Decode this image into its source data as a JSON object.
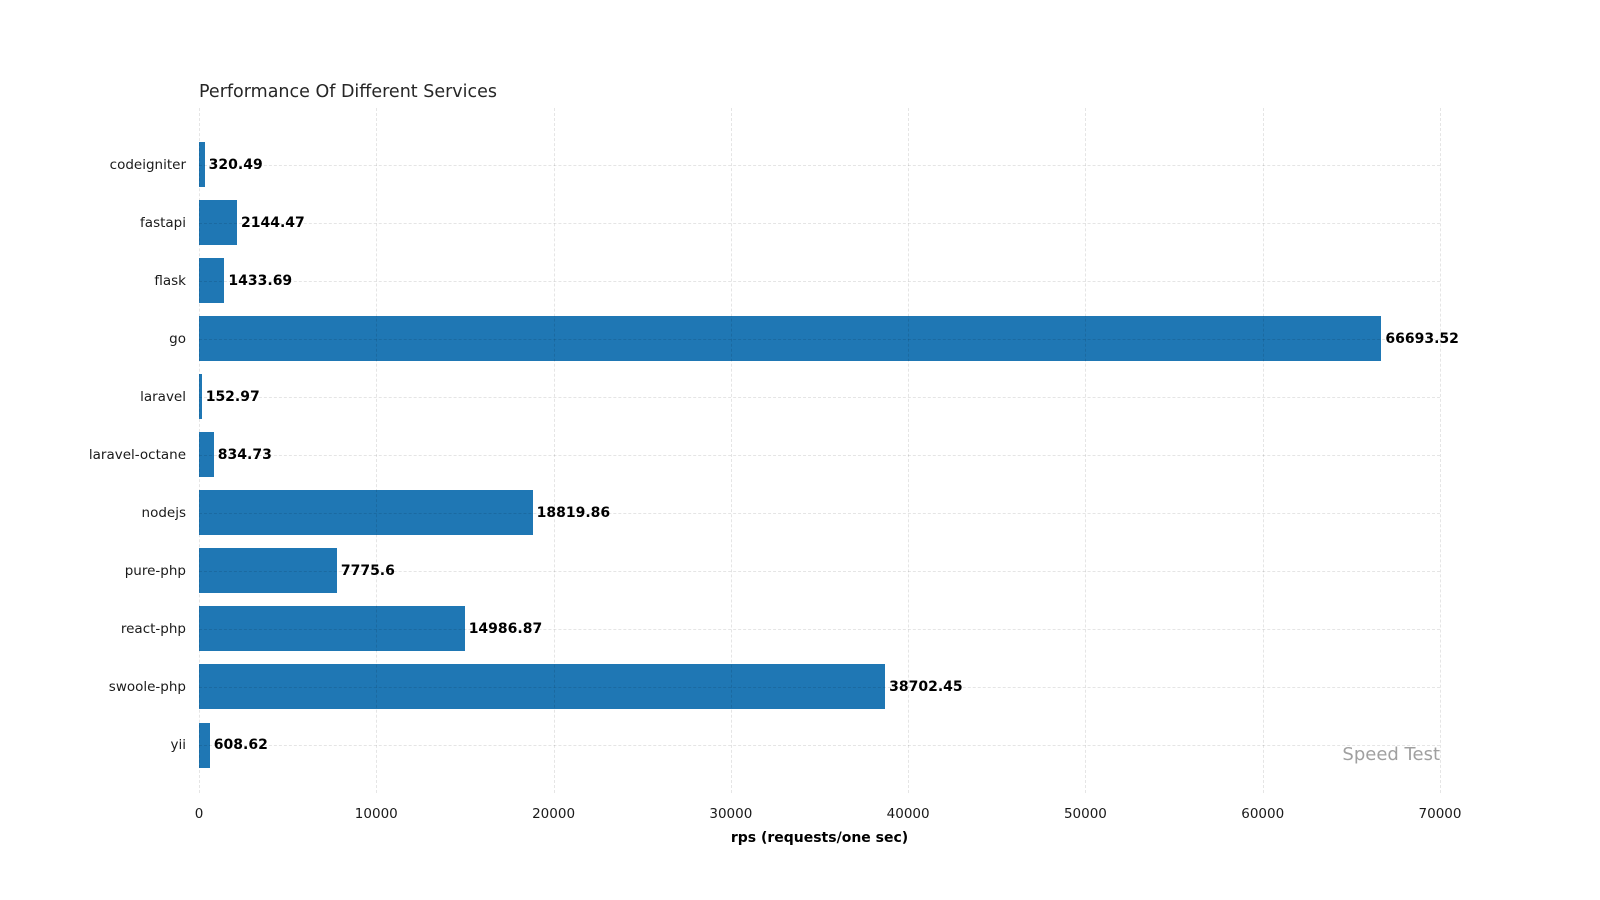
{
  "chart_data": {
    "type": "bar",
    "orientation": "horizontal",
    "title": "Performance Of Different Services",
    "xlabel": "rps (requests/one sec)",
    "watermark": "Speed Test",
    "categories": [
      "codeigniter",
      "fastapi",
      "flask",
      "go",
      "laravel",
      "laravel-octane",
      "nodejs",
      "pure-php",
      "react-php",
      "swoole-php",
      "yii"
    ],
    "values": [
      320.49,
      2144.47,
      1433.69,
      66693.52,
      152.97,
      834.73,
      18819.86,
      7775.6,
      14986.87,
      38702.45,
      608.62
    ],
    "value_labels": [
      "320.49",
      "2144.47",
      "1433.69",
      "66693.52",
      "152.97",
      "834.73",
      "18819.86",
      "7775.6",
      "14986.87",
      "38702.45",
      "608.62"
    ],
    "xlim": [
      0,
      70000
    ],
    "x_ticks": [
      0,
      10000,
      20000,
      30000,
      40000,
      50000,
      60000,
      70000
    ],
    "x_tick_labels": [
      "0",
      "10000",
      "20000",
      "30000",
      "40000",
      "50000",
      "60000",
      "70000"
    ],
    "grid": true,
    "legend": null,
    "bar_color": "#1f77b4",
    "background_color": "#ffffff",
    "grid_color": "rgba(0,0,0,0.10)",
    "watermark_color": "#a0a0a0"
  }
}
